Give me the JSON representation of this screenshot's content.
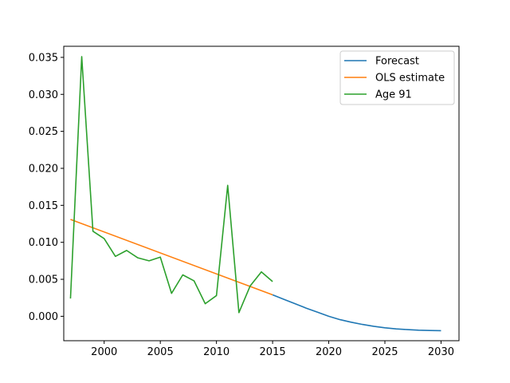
{
  "chart_data": {
    "type": "line",
    "title": "",
    "xlabel": "",
    "ylabel": "",
    "xlim": [
      1996.4,
      2031.6
    ],
    "ylim": [
      -0.0033,
      0.0365
    ],
    "x_ticks": [
      2000,
      2005,
      2010,
      2015,
      2020,
      2025,
      2030
    ],
    "y_ticks": [
      0.0,
      0.005,
      0.01,
      0.015,
      0.02,
      0.025,
      0.03,
      0.035
    ],
    "grid": false,
    "legend_position": "top-right",
    "series": [
      {
        "name": "Forecast",
        "color": "#1f77b4",
        "x": [
          2015,
          2016,
          2017,
          2018,
          2019,
          2020,
          2021,
          2022,
          2023,
          2024,
          2025,
          2026,
          2027,
          2028,
          2029,
          2030
        ],
        "y": [
          0.0029,
          0.0023,
          0.0017,
          0.0011,
          0.00055,
          0.0,
          -0.00045,
          -0.0008,
          -0.0011,
          -0.00135,
          -0.00155,
          -0.0017,
          -0.0018,
          -0.00188,
          -0.00192,
          -0.00195
        ]
      },
      {
        "name": "OLS estimate",
        "color": "#ff7f0e",
        "x": [
          1997,
          2015
        ],
        "y": [
          0.0131,
          0.0029
        ]
      },
      {
        "name": "Age 91",
        "color": "#2ca02c",
        "x": [
          1997,
          1998,
          1999,
          2000,
          2001,
          2002,
          2003,
          2004,
          2005,
          2006,
          2007,
          2008,
          2009,
          2010,
          2011,
          2012,
          2013,
          2014,
          2015
        ],
        "y": [
          0.0024,
          0.0351,
          0.0115,
          0.0105,
          0.0081,
          0.0089,
          0.0079,
          0.0075,
          0.008,
          0.0031,
          0.0056,
          0.0048,
          0.0017,
          0.0028,
          0.0177,
          0.0005,
          0.0041,
          0.006,
          0.0047
        ]
      }
    ]
  }
}
